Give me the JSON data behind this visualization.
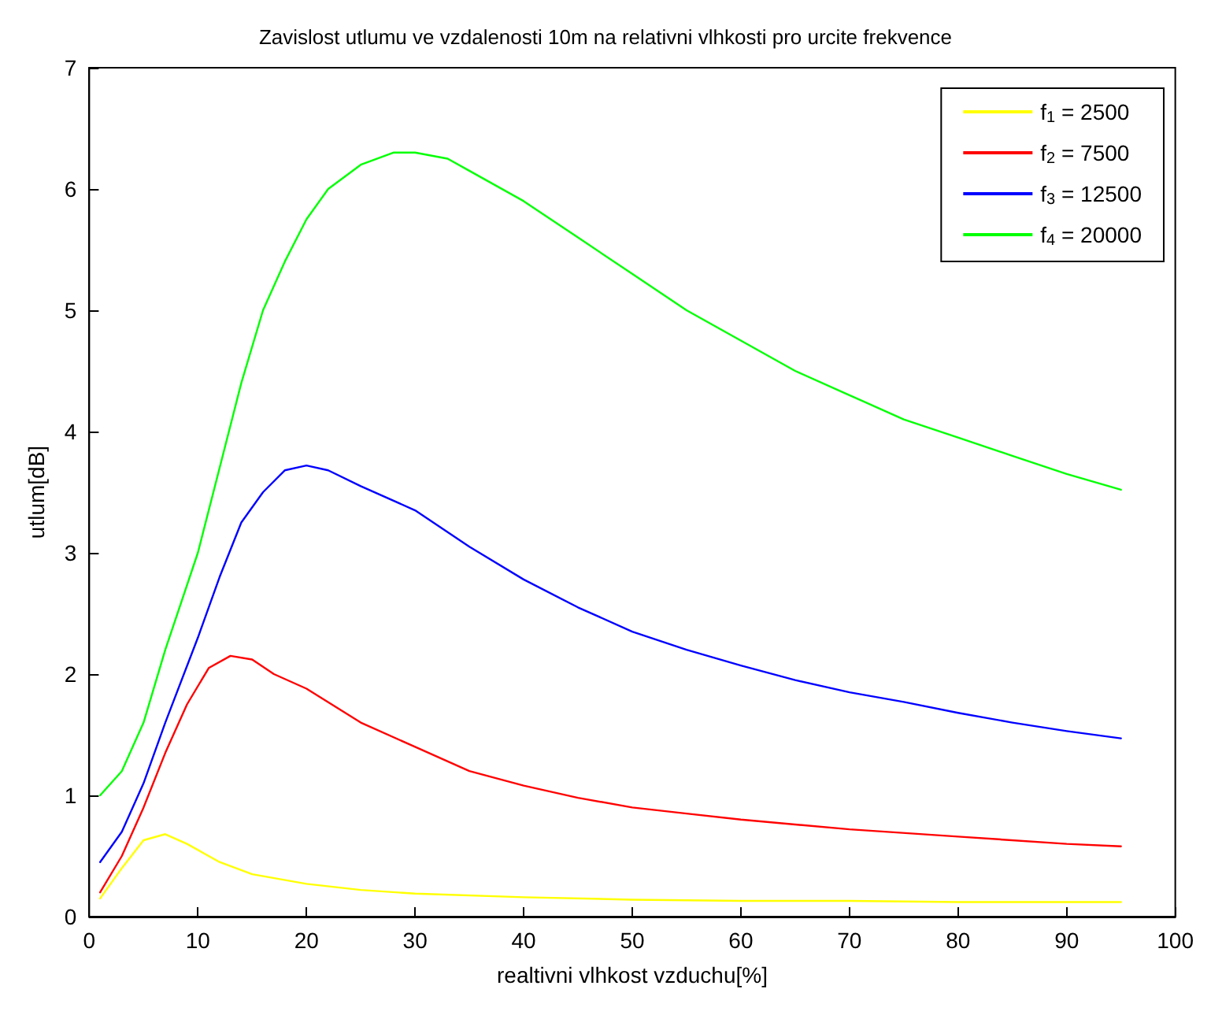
{
  "chart_data": {
    "type": "line",
    "title": "Zavislost utlumu ve vzdalenosti 10m na relativni vlhkosti pro urcite frekvence",
    "xlabel": "realtivni vlhkost vzduchu[%]",
    "ylabel": "utlum[dB]",
    "xlim": [
      0,
      100
    ],
    "xticks": [
      0,
      10,
      20,
      30,
      40,
      50,
      60,
      70,
      80,
      90,
      100
    ],
    "ylim": [
      0,
      7
    ],
    "yticks": [
      0,
      1,
      2,
      3,
      4,
      5,
      6,
      7
    ],
    "grid": false,
    "legend": "top right",
    "marker": "none",
    "line_style": "solid",
    "series": [
      {
        "name": "f$_{1}$ = 2500",
        "color": "#ffff00",
        "x": [
          1,
          3,
          5,
          7,
          9,
          12,
          15,
          20,
          25,
          30,
          40,
          50,
          60,
          70,
          80,
          95
        ],
        "values": [
          0.15,
          0.4,
          0.63,
          0.68,
          0.6,
          0.45,
          0.35,
          0.27,
          0.22,
          0.19,
          0.16,
          0.14,
          0.13,
          0.13,
          0.12,
          0.12
        ]
      },
      {
        "name": "f$_{2}$ = 7500",
        "color": "#ff0000",
        "x": [
          1,
          3,
          5,
          7,
          9,
          11,
          13,
          15,
          17,
          20,
          25,
          30,
          35,
          40,
          45,
          50,
          55,
          60,
          70,
          80,
          90,
          95
        ],
        "values": [
          0.2,
          0.5,
          0.9,
          1.35,
          1.75,
          2.05,
          2.15,
          2.12,
          2.0,
          1.88,
          1.6,
          1.4,
          1.2,
          1.08,
          0.98,
          0.9,
          0.85,
          0.8,
          0.72,
          0.66,
          0.6,
          0.58
        ]
      },
      {
        "name": "f$_{3}$ = 12500",
        "color": "#0000ff",
        "x": [
          1,
          3,
          5,
          7,
          10,
          12,
          14,
          16,
          18,
          20,
          22,
          25,
          30,
          35,
          40,
          45,
          50,
          55,
          60,
          65,
          70,
          75,
          80,
          85,
          90,
          95
        ],
        "values": [
          0.45,
          0.7,
          1.1,
          1.6,
          2.3,
          2.8,
          3.25,
          3.5,
          3.68,
          3.72,
          3.68,
          3.55,
          3.35,
          3.05,
          2.78,
          2.55,
          2.35,
          2.2,
          2.07,
          1.95,
          1.85,
          1.77,
          1.68,
          1.6,
          1.53,
          1.47
        ]
      },
      {
        "name": "f$_{4}$ = 20000",
        "color": "#00ff00",
        "x": [
          1,
          3,
          5,
          7,
          10,
          12,
          14,
          16,
          18,
          20,
          22,
          25,
          28,
          30,
          33,
          35,
          40,
          45,
          50,
          55,
          60,
          65,
          70,
          75,
          80,
          85,
          90,
          95
        ],
        "values": [
          1.0,
          1.2,
          1.6,
          2.2,
          3.0,
          3.7,
          4.4,
          5.0,
          5.4,
          5.75,
          6.0,
          6.2,
          6.3,
          6.3,
          6.25,
          6.15,
          5.9,
          5.6,
          5.3,
          5.0,
          4.75,
          4.5,
          4.3,
          4.1,
          3.95,
          3.8,
          3.65,
          3.52
        ]
      }
    ]
  }
}
